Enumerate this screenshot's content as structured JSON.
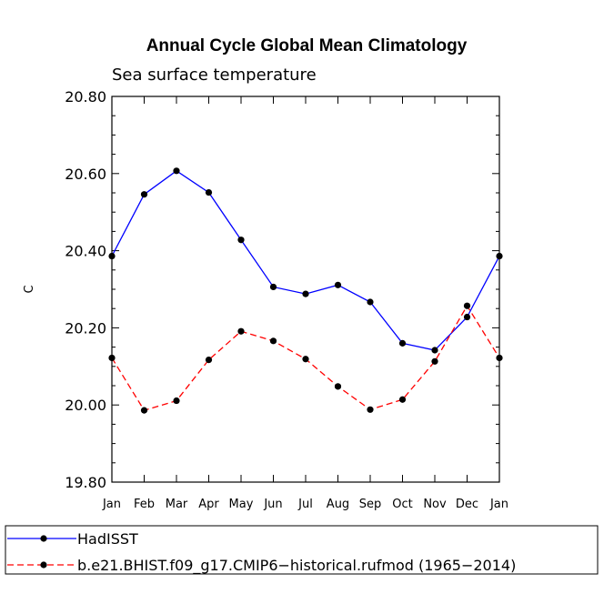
{
  "chart_data": {
    "type": "line",
    "title": "Annual Cycle Global Mean Climatology",
    "subtitle": "Sea surface temperature",
    "ylabel": "C",
    "xlabel": "",
    "ylim": [
      19.8,
      20.8
    ],
    "yticks": [
      "19.80",
      "20.00",
      "20.20",
      "20.40",
      "20.60",
      "20.80"
    ],
    "ytick_values": [
      19.8,
      20.0,
      20.2,
      20.4,
      20.6,
      20.8
    ],
    "categories": [
      "Jan",
      "Feb",
      "Mar",
      "Apr",
      "May",
      "Jun",
      "Jul",
      "Aug",
      "Sep",
      "Oct",
      "Nov",
      "Dec",
      "Jan"
    ],
    "series": [
      {
        "name": "HadISST",
        "color": "#0000ff",
        "dash": "solid",
        "values": [
          20.386,
          20.546,
          20.607,
          20.551,
          20.428,
          20.306,
          20.288,
          20.311,
          20.267,
          20.16,
          20.142,
          20.228,
          20.386
        ]
      },
      {
        "name": "b.e21.BHIST.f09_g17.CMIP6−historical.rufmod (1965−2014)",
        "color": "#ff0000",
        "dash": "dashed",
        "values": [
          20.122,
          19.986,
          20.011,
          20.117,
          20.191,
          20.166,
          20.119,
          20.048,
          19.988,
          20.014,
          20.113,
          20.257,
          20.122
        ]
      }
    ],
    "legend_position": "bottom-left"
  }
}
